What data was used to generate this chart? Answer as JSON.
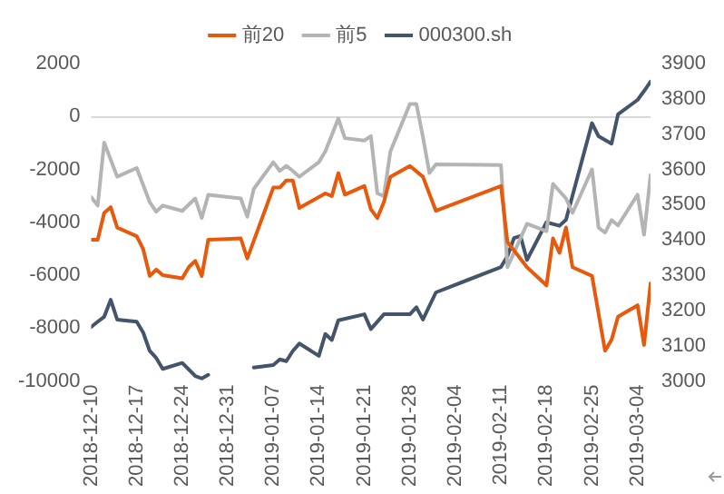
{
  "chart_data": {
    "type": "line",
    "xlim": [
      "2018-12-10",
      "2019-03-06"
    ],
    "xticks": [
      "2018-12-10",
      "2018-12-17",
      "2018-12-24",
      "2018-12-31",
      "2019-01-07",
      "2019-01-14",
      "2019-01-21",
      "2019-01-28",
      "2019-02-04",
      "2019-02-11",
      "2019-02-18",
      "2019-02-25",
      "2019-03-04"
    ],
    "ylim": [
      -10000,
      2000
    ],
    "yticks": [
      -10000,
      -8000,
      -6000,
      -4000,
      -2000,
      0,
      2000
    ],
    "y2lim": [
      3000,
      3900
    ],
    "y2ticks": [
      3000,
      3100,
      3200,
      3300,
      3400,
      3500,
      3600,
      3700,
      3800,
      3900
    ],
    "grid": false,
    "legend": "top",
    "marker": "none",
    "line_style": "solid",
    "ref_lines": [
      {
        "axis": "y",
        "value": 0,
        "color": "#d9d9d9"
      }
    ],
    "series": [
      {
        "name": "前20",
        "color": "#e8590c",
        "x": [
          "2018-12-10",
          "2018-12-11",
          "2018-12-12",
          "2018-12-13",
          "2018-12-14",
          "2018-12-17",
          "2018-12-18",
          "2018-12-19",
          "2018-12-20",
          "2018-12-21",
          "2018-12-24",
          "2018-12-25",
          "2018-12-26",
          "2018-12-27",
          "2018-12-28",
          "2019-01-02",
          "2019-01-03",
          "2019-01-07",
          "2019-01-08",
          "2019-01-09",
          "2019-01-10",
          "2019-01-11",
          "2019-01-14",
          "2019-01-15",
          "2019-01-16",
          "2019-01-17",
          "2019-01-18",
          "2019-01-21",
          "2019-01-22",
          "2019-01-23",
          "2019-01-24",
          "2019-01-25",
          "2019-01-28",
          "2019-01-30",
          "2019-02-01",
          "2019-02-11",
          "2019-02-12",
          "2019-02-15",
          "2019-02-18",
          "2019-02-19",
          "2019-02-20",
          "2019-02-21",
          "2019-02-22",
          "2019-02-25",
          "2019-02-27",
          "2019-02-28",
          "2019-03-01",
          "2019-03-04",
          "2019-03-05",
          "2019-03-06"
        ],
        "values": [
          -4660,
          -4660,
          -3650,
          -3430,
          -4200,
          -4530,
          -5020,
          -6030,
          -5790,
          -6000,
          -6120,
          -5700,
          -5460,
          -6030,
          -4660,
          -4610,
          -5370,
          -2690,
          -2690,
          -2420,
          -2420,
          -3460,
          -3050,
          -2910,
          -3010,
          -2140,
          -2960,
          -2630,
          -3510,
          -3840,
          -3240,
          -2280,
          -1870,
          -2280,
          -3570,
          -2630,
          -4750,
          -5700,
          -6390,
          -4610,
          -5160,
          -4200,
          -5700,
          -6030,
          -8860,
          -8450,
          -7570,
          -7140,
          -8640,
          -6310
        ]
      },
      {
        "name": "前5",
        "color": "#b4b4b4",
        "x": [
          "2018-12-10",
          "2018-12-11",
          "2018-12-12",
          "2018-12-14",
          "2018-12-17",
          "2018-12-19",
          "2018-12-20",
          "2018-12-21",
          "2018-12-24",
          "2018-12-26",
          "2018-12-27",
          "2018-12-28",
          "2019-01-02",
          "2019-01-03",
          "2019-01-04",
          "2019-01-07",
          "2019-01-08",
          "2019-01-09",
          "2019-01-10",
          "2019-01-11",
          "2019-01-14",
          "2019-01-15",
          "2019-01-17",
          "2019-01-18",
          "2019-01-21",
          "2019-01-22",
          "2019-01-23",
          "2019-01-24",
          "2019-01-25",
          "2019-01-28",
          "2019-01-29",
          "2019-01-30",
          "2019-01-31",
          "2019-02-01",
          "2019-02-11",
          "2019-02-12",
          "2019-02-15",
          "2019-02-18",
          "2019-02-19",
          "2019-02-21",
          "2019-02-22",
          "2019-02-25",
          "2019-02-26",
          "2019-02-27",
          "2019-02-28",
          "2019-03-01",
          "2019-03-04",
          "2019-03-05",
          "2019-03-06"
        ],
        "values": [
          -3050,
          -3370,
          -990,
          -2280,
          -1950,
          -3240,
          -3600,
          -3370,
          -3570,
          -3100,
          -3840,
          -2960,
          -3100,
          -3790,
          -2740,
          -1730,
          -2060,
          -1870,
          -2060,
          -2280,
          -1730,
          -1320,
          -80,
          -820,
          -910,
          -740,
          -2910,
          -3010,
          -1320,
          470,
          470,
          -770,
          -2140,
          -1810,
          -1840,
          -5700,
          -4060,
          -4340,
          -2550,
          -3100,
          -3650,
          -2000,
          -4200,
          -4390,
          -3920,
          -4120,
          -2960,
          -4470,
          -2220
        ]
      },
      {
        "name": "000300.sh",
        "color": "#44546a",
        "axis": "y2",
        "x": [
          "2018-12-10",
          "2018-12-11",
          "2018-12-12",
          "2018-12-13",
          "2018-12-14",
          "2018-12-17",
          "2018-12-18",
          "2018-12-19",
          "2018-12-20",
          "2018-12-21",
          "2018-12-24",
          "2018-12-26",
          "2018-12-27",
          "2018-12-28",
          "2018-12-31",
          "2019-01-02",
          "2019-01-03",
          "2019-01-04",
          "2019-01-07",
          "2019-01-08",
          "2019-01-09",
          "2019-01-10",
          "2019-01-11",
          "2019-01-14",
          "2019-01-15",
          "2019-01-16",
          "2019-01-17",
          "2019-01-21",
          "2019-01-22",
          "2019-01-24",
          "2019-01-28",
          "2019-01-29",
          "2019-01-30",
          "2019-02-01",
          "2019-02-11",
          "2019-02-12",
          "2019-02-13",
          "2019-02-14",
          "2019-02-15",
          "2019-02-18",
          "2019-02-20",
          "2019-02-21",
          "2019-02-25",
          "2019-02-26",
          "2019-02-28",
          "2019-03-01",
          "2019-03-04",
          "2019-03-05",
          "2019-03-06"
        ],
        "values": [
          3153,
          3168,
          3182,
          3230,
          3174,
          3168,
          3137,
          3085,
          3065,
          3034,
          3051,
          3014,
          3007,
          3017,
          null,
          null,
          null,
          3038,
          3045,
          3061,
          3056,
          3085,
          3106,
          3071,
          3133,
          3116,
          3172,
          3189,
          3147,
          3189,
          3189,
          3209,
          3174,
          3251,
          3323,
          3354,
          3405,
          3411,
          3343,
          3450,
          3440,
          3457,
          3731,
          3694,
          3673,
          3756,
          3797,
          3822,
          3849
        ]
      }
    ]
  }
}
